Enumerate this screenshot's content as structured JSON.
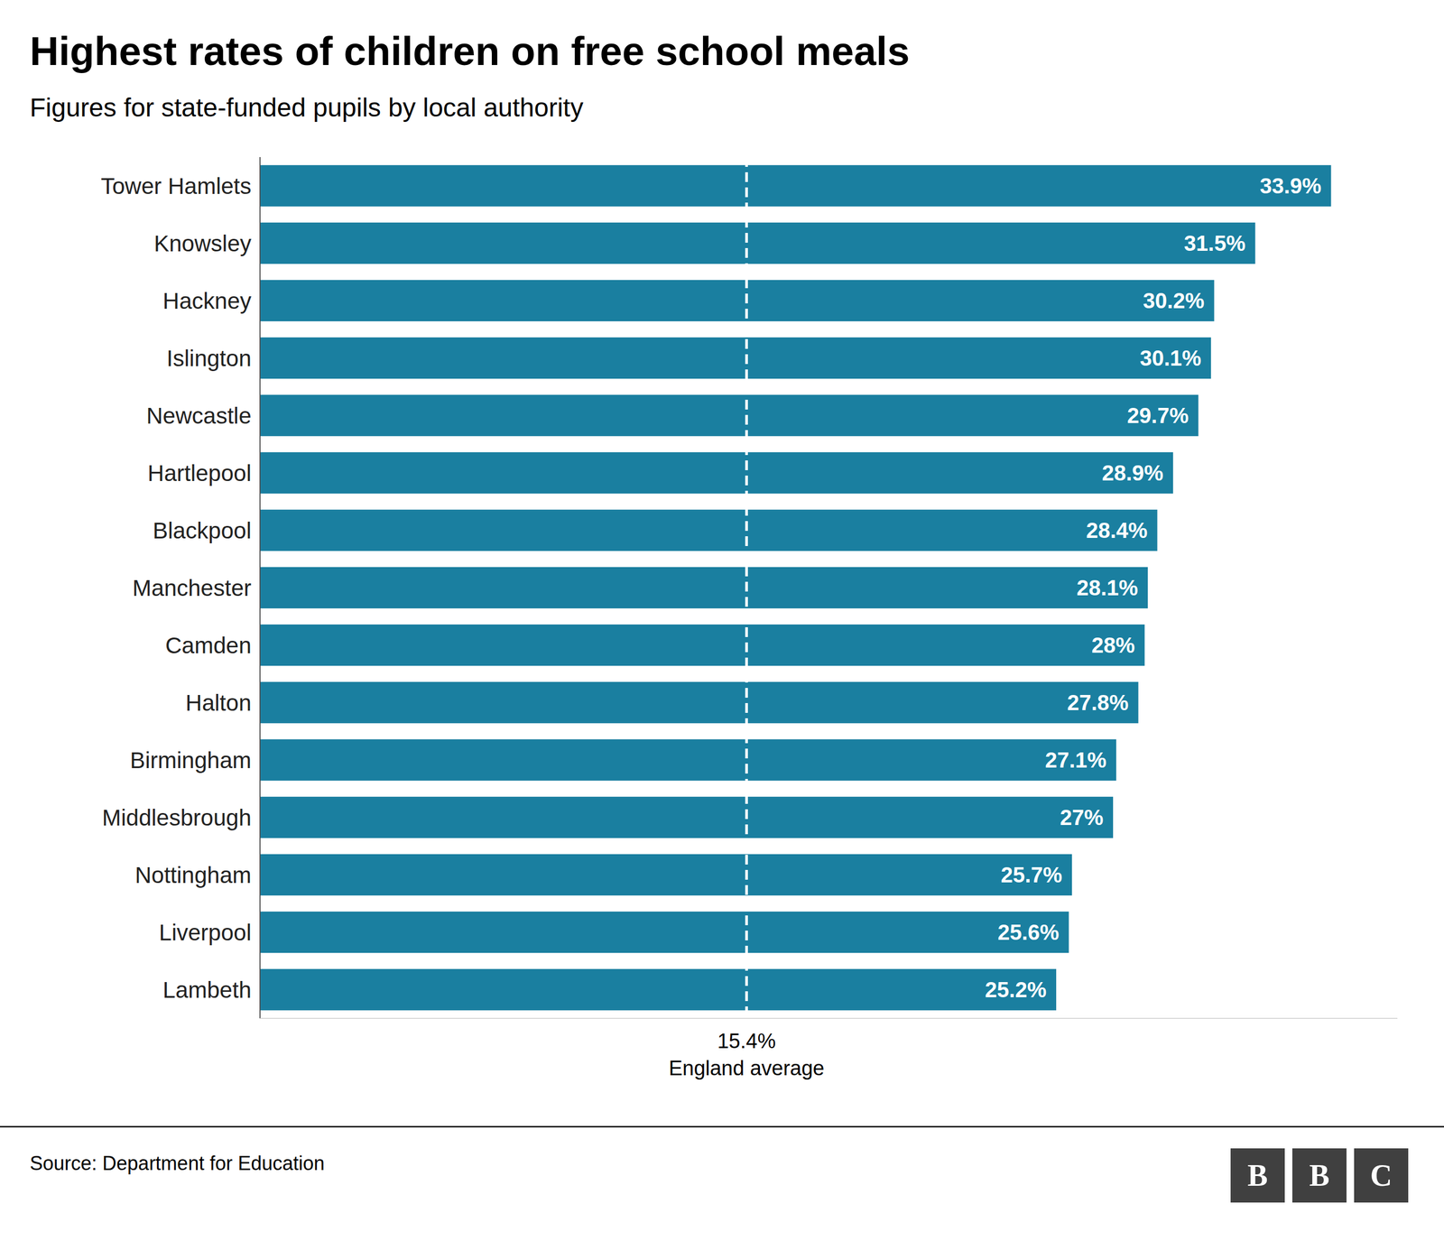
{
  "chart_data": {
    "type": "bar",
    "orientation": "horizontal",
    "title": "Highest rates of children on free school meals",
    "subtitle": "Figures for state-funded pupils by local authority",
    "source": "Source: Department for Education",
    "categories": [
      "Tower Hamlets",
      "Knowsley",
      "Hackney",
      "Islington",
      "Newcastle",
      "Hartlepool",
      "Blackpool",
      "Manchester",
      "Camden",
      "Halton",
      "Birmingham",
      "Middlesbrough",
      "Nottingham",
      "Liverpool",
      "Lambeth"
    ],
    "values": [
      33.9,
      31.5,
      30.2,
      30.1,
      29.7,
      28.9,
      28.4,
      28.1,
      28.0,
      27.8,
      27.1,
      27.0,
      25.7,
      25.6,
      25.2
    ],
    "value_labels": [
      "33.9%",
      "31.5%",
      "30.2%",
      "30.1%",
      "29.7%",
      "28.9%",
      "28.4%",
      "28.1%",
      "28%",
      "27.8%",
      "27.1%",
      "27%",
      "25.7%",
      "25.6%",
      "25.2%"
    ],
    "data_labels": true,
    "color": "#1a7fa0",
    "xlim": [
      0,
      36
    ],
    "tick_labels": "y",
    "grid": false,
    "reference_line": {
      "value": 15.4,
      "label": "15.4%",
      "text": "England average",
      "color": "#ffffff",
      "line_style": "dashed"
    },
    "logo": [
      "B",
      "B",
      "C"
    ]
  }
}
